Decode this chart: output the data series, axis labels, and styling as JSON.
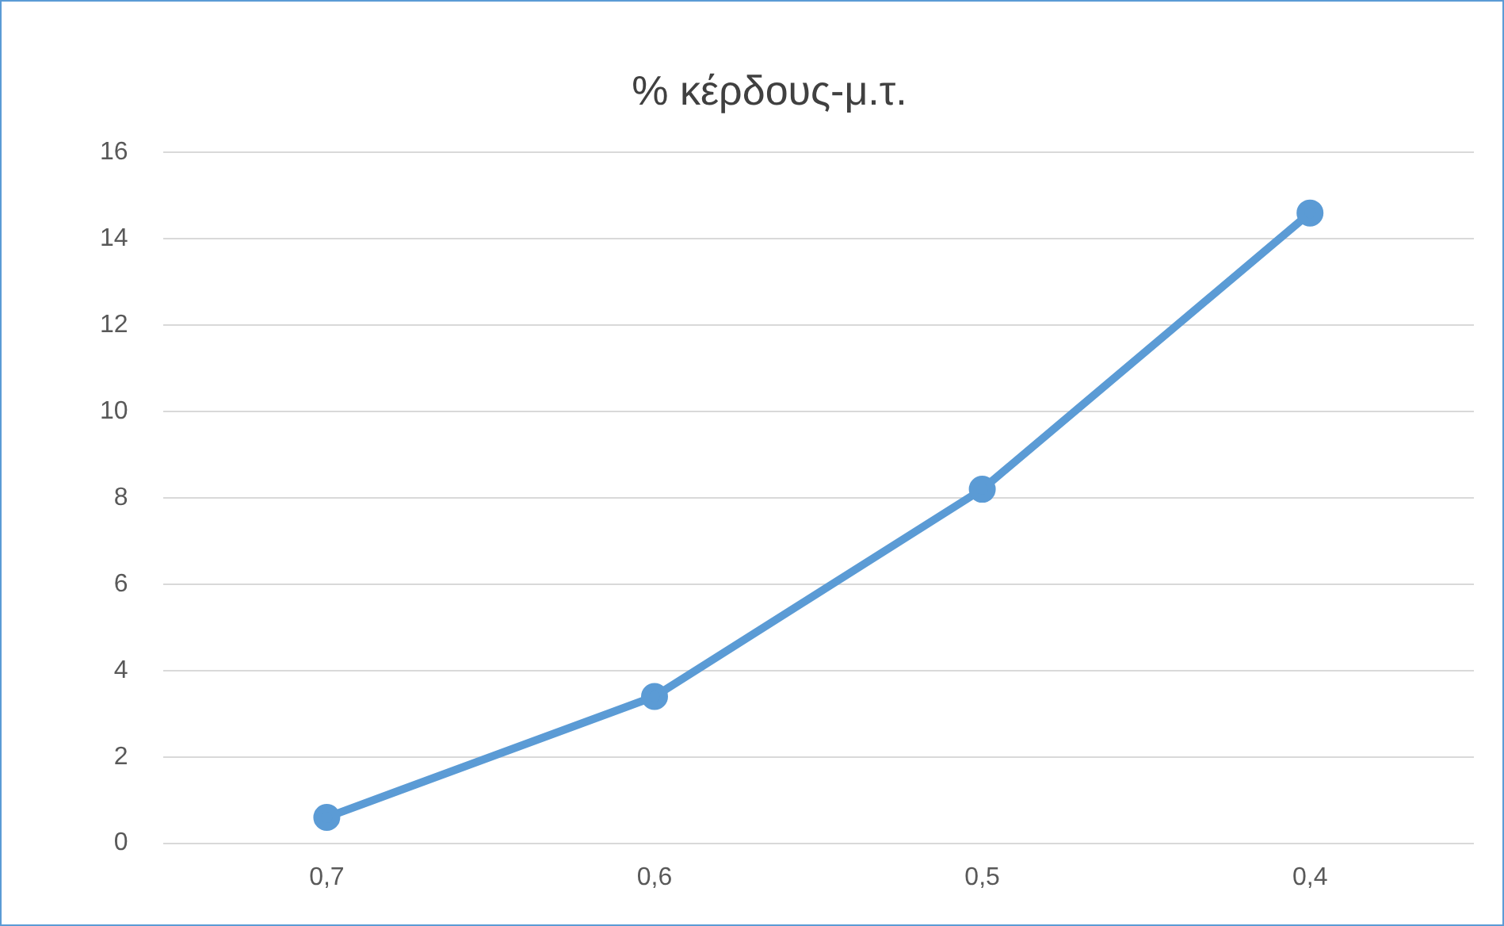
{
  "chart_data": {
    "type": "line",
    "title": "% κέρδους-μ.τ.",
    "categories": [
      "0,7",
      "0,6",
      "0,5",
      "0,4"
    ],
    "series": [
      {
        "color": "#5b9bd5",
        "values": [
          0.6,
          3.4,
          8.2,
          14.6
        ]
      }
    ],
    "ylim": [
      0,
      16
    ],
    "yticks": [
      0,
      2,
      4,
      6,
      8,
      10,
      12,
      14,
      16
    ],
    "grid": "y",
    "legend": false,
    "marker": "circle",
    "line_style": "solid"
  }
}
